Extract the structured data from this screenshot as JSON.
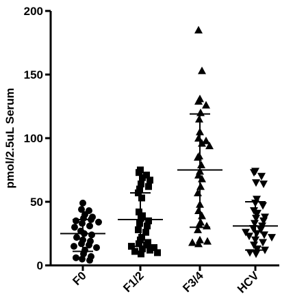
{
  "chart_data": {
    "type": "scatter",
    "title": "",
    "xlabel": "",
    "ylabel": "pmol/2.5uL Serum",
    "ylim": [
      0,
      200
    ],
    "yticks": [
      0,
      50,
      100,
      150,
      200
    ],
    "grid": false,
    "legend": "none",
    "categories": [
      "F0",
      "F1/2",
      "F3/4",
      "HCV"
    ],
    "series": [
      {
        "category": "F0",
        "marker": "circle",
        "mean": 25,
        "sd_low": 11,
        "sd_high": 36,
        "values": [
          49,
          44,
          43,
          40,
          38,
          37,
          36,
          35,
          34,
          33,
          31,
          30,
          27,
          25,
          24,
          22,
          20,
          19,
          17,
          16,
          15,
          14,
          12,
          9,
          7,
          6,
          5,
          4
        ]
      },
      {
        "category": "F1/2",
        "marker": "square",
        "mean": 36,
        "sd_low": 15,
        "sd_high": 57,
        "values": [
          75,
          73,
          71,
          69,
          67,
          64,
          62,
          60,
          57,
          53,
          42,
          39,
          37,
          35,
          33,
          31,
          28,
          26,
          22,
          20,
          18,
          17,
          16,
          15,
          14,
          13,
          12,
          11,
          10,
          9
        ]
      },
      {
        "category": "F3/4",
        "marker": "triangle-up",
        "mean": 75,
        "sd_low": 30,
        "sd_high": 119,
        "values": [
          185,
          153,
          131,
          129,
          126,
          120,
          115,
          105,
          100,
          98,
          96,
          94,
          86,
          85,
          79,
          74,
          71,
          68,
          62,
          57,
          48,
          43,
          39,
          34,
          32,
          31,
          28,
          20,
          19,
          18,
          17
        ]
      },
      {
        "category": "HCV",
        "marker": "triangle-down",
        "mean": 31,
        "sd_low": 12,
        "sd_high": 50,
        "values": [
          74,
          73,
          70,
          65,
          64,
          52,
          49,
          47,
          43,
          41,
          38,
          37,
          35,
          33,
          31,
          29,
          28,
          26,
          25,
          24,
          23,
          22,
          20,
          18,
          16,
          13,
          12,
          10,
          9
        ]
      }
    ]
  }
}
